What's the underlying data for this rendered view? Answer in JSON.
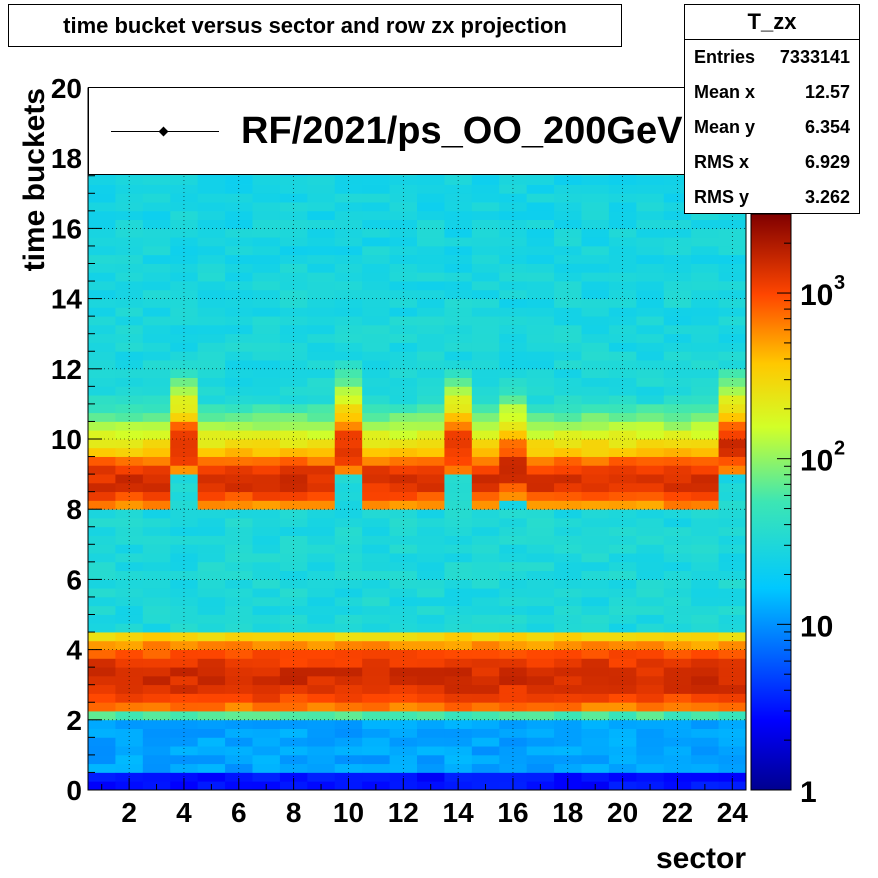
{
  "title": "time bucket versus sector and row zx projection",
  "stats": {
    "name": "T_zx",
    "rows": [
      {
        "label": "Entries",
        "value": "7333141"
      },
      {
        "label": "Mean x",
        "value": "12.57"
      },
      {
        "label": "Mean y",
        "value": "6.354"
      },
      {
        "label": "RMS x",
        "value": "6.929"
      },
      {
        "label": "RMS y",
        "value": "3.262"
      }
    ]
  },
  "legend": {
    "label": "RF/2021/ps_OO_200GeV"
  },
  "chart_data": {
    "type": "heatmap",
    "xlabel": "sector",
    "ylabel": "time buckets",
    "xlim": [
      0.5,
      24.5
    ],
    "ylim": [
      0,
      20
    ],
    "x_ticks": [
      "2",
      "4",
      "6",
      "8",
      "10",
      "12",
      "14",
      "16",
      "18",
      "20",
      "22",
      "24"
    ],
    "y_ticks": [
      "0",
      "2",
      "4",
      "6",
      "8",
      "10",
      "12",
      "14",
      "16",
      "18",
      "20"
    ],
    "color_scale": "log",
    "zlim": [
      1,
      3000
    ],
    "colorbar_ticks": [
      {
        "value": 1,
        "label": "1"
      },
      {
        "value": 10,
        "label": "10"
      },
      {
        "value": 100,
        "label": "10",
        "exponent": "2"
      },
      {
        "value": 1000,
        "label": "10",
        "exponent": "3"
      }
    ],
    "grid": true,
    "y_bins": 80,
    "first_peak": {
      "center": 3.2,
      "low_edge": 2.2,
      "high_edge": 4.5,
      "peak_counts": 1500
    },
    "second_peak": {
      "peak_counts": 1400
    },
    "second_peak_default": {
      "low_edge": 8.0,
      "high_edge": 9.6
    },
    "second_peak_shifted": {
      "low_edge": 9.0,
      "high_edge": 10.6,
      "sectors": [
        4,
        10,
        14,
        24
      ]
    },
    "second_peak_sector16": {
      "low_edge": 8.2,
      "high_edge": 10.1
    },
    "background_counts": 30,
    "low_region_counts": 12
  }
}
